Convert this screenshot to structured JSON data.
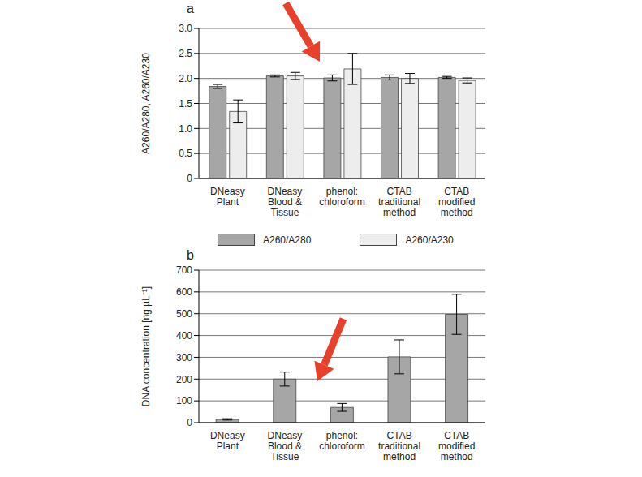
{
  "chart_data": [
    {
      "type": "bar",
      "title": "a",
      "categories": [
        "DNeasy Plant",
        "DNeasy Blood & Tissue",
        "phenol: chloroform",
        "CTAB traditional method",
        "CTAB modified method"
      ],
      "series": [
        {
          "name": "A260/A280",
          "color": "#a6a6a6",
          "values": [
            1.84,
            2.05,
            2.01,
            2.02,
            2.02
          ],
          "errors": [
            0.04,
            0.02,
            0.06,
            0.05,
            0.02
          ]
        },
        {
          "name": "A260/A230",
          "color": "#ededed",
          "values": [
            1.34,
            2.05,
            2.19,
            2.0,
            1.96
          ],
          "errors": [
            0.23,
            0.07,
            0.31,
            0.1,
            0.05
          ]
        }
      ],
      "y_label": "A260/A280, A260/A230",
      "ylim": [
        0,
        3
      ],
      "yticks": [
        0,
        0.5,
        {
          "value": 1,
          "label": "1.0"
        },
        {
          "value": 1.5,
          "label": "1.5"
        },
        {
          "value": 2,
          "label": "2.0"
        },
        {
          "value": 2.5,
          "label": "2.5"
        },
        {
          "value": 3,
          "label": "3.0"
        }
      ],
      "grid": true,
      "legend": "bottom"
    },
    {
      "type": "bar",
      "title": "b",
      "categories": [
        "DNeasy Plant",
        "DNeasy Blood & Tissue",
        "phenol: chloroform",
        "CTAB traditional method",
        "CTAB modified method"
      ],
      "values": [
        15,
        200,
        70,
        302,
        497
      ],
      "errors": [
        3,
        32,
        18,
        78,
        92
      ],
      "color": "#a6a6a6",
      "y_label": "DNA concentration [ng µL⁻¹]",
      "ylim": [
        0,
        700
      ],
      "yticks": [
        0,
        100,
        200,
        300,
        400,
        500,
        600,
        700
      ],
      "grid": true
    }
  ]
}
